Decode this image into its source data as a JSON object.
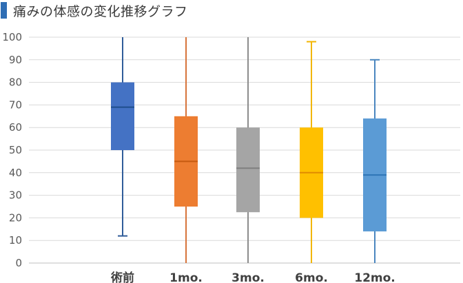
{
  "chart_data": {
    "type": "boxplot",
    "title": "痛みの体感の変化推移グラフ",
    "xlabel": "",
    "ylabel": "",
    "ylim": [
      0,
      100
    ],
    "yticks": [
      0,
      10,
      20,
      30,
      40,
      50,
      60,
      70,
      80,
      90,
      100
    ],
    "grid": true,
    "legend": "none",
    "categories": [
      "術前",
      "1mo.",
      "3mo.",
      "6mo.",
      "12mo."
    ],
    "boxes": [
      {
        "category": "術前",
        "min": 12,
        "q1": 50,
        "median": 69,
        "q3": 80,
        "max": 100,
        "color": "#4472c4",
        "whisker_color": "#2f5c99",
        "median_color": "#1f4e8c"
      },
      {
        "category": "1mo.",
        "min": 0,
        "q1": 25,
        "median": 45,
        "q3": 65,
        "max": 100,
        "color": "#ed7d31",
        "whisker_color": "#d7733a",
        "median_color": "#c55a11"
      },
      {
        "category": "3mo.",
        "min": 0,
        "q1": 22.5,
        "median": 42,
        "q3": 60,
        "max": 100,
        "color": "#a5a5a5",
        "whisker_color": "#8c8c8c",
        "median_color": "#7f7f7f"
      },
      {
        "category": "6mo.",
        "min": 0,
        "q1": 20,
        "median": 40,
        "q3": 60,
        "max": 98,
        "color": "#ffc000",
        "whisker_color": "#f2b600",
        "median_color": "#e08a00"
      },
      {
        "category": "12mo.",
        "min": 0,
        "q1": 14,
        "median": 39,
        "q3": 64,
        "max": 90,
        "color": "#5b9bd5",
        "whisker_color": "#4a86bf",
        "median_color": "#2e75b6"
      }
    ]
  },
  "colors": {
    "title_accent": "#2f6eb4",
    "gridline": "#d9d9d9",
    "axis": "#bfbfbf"
  }
}
